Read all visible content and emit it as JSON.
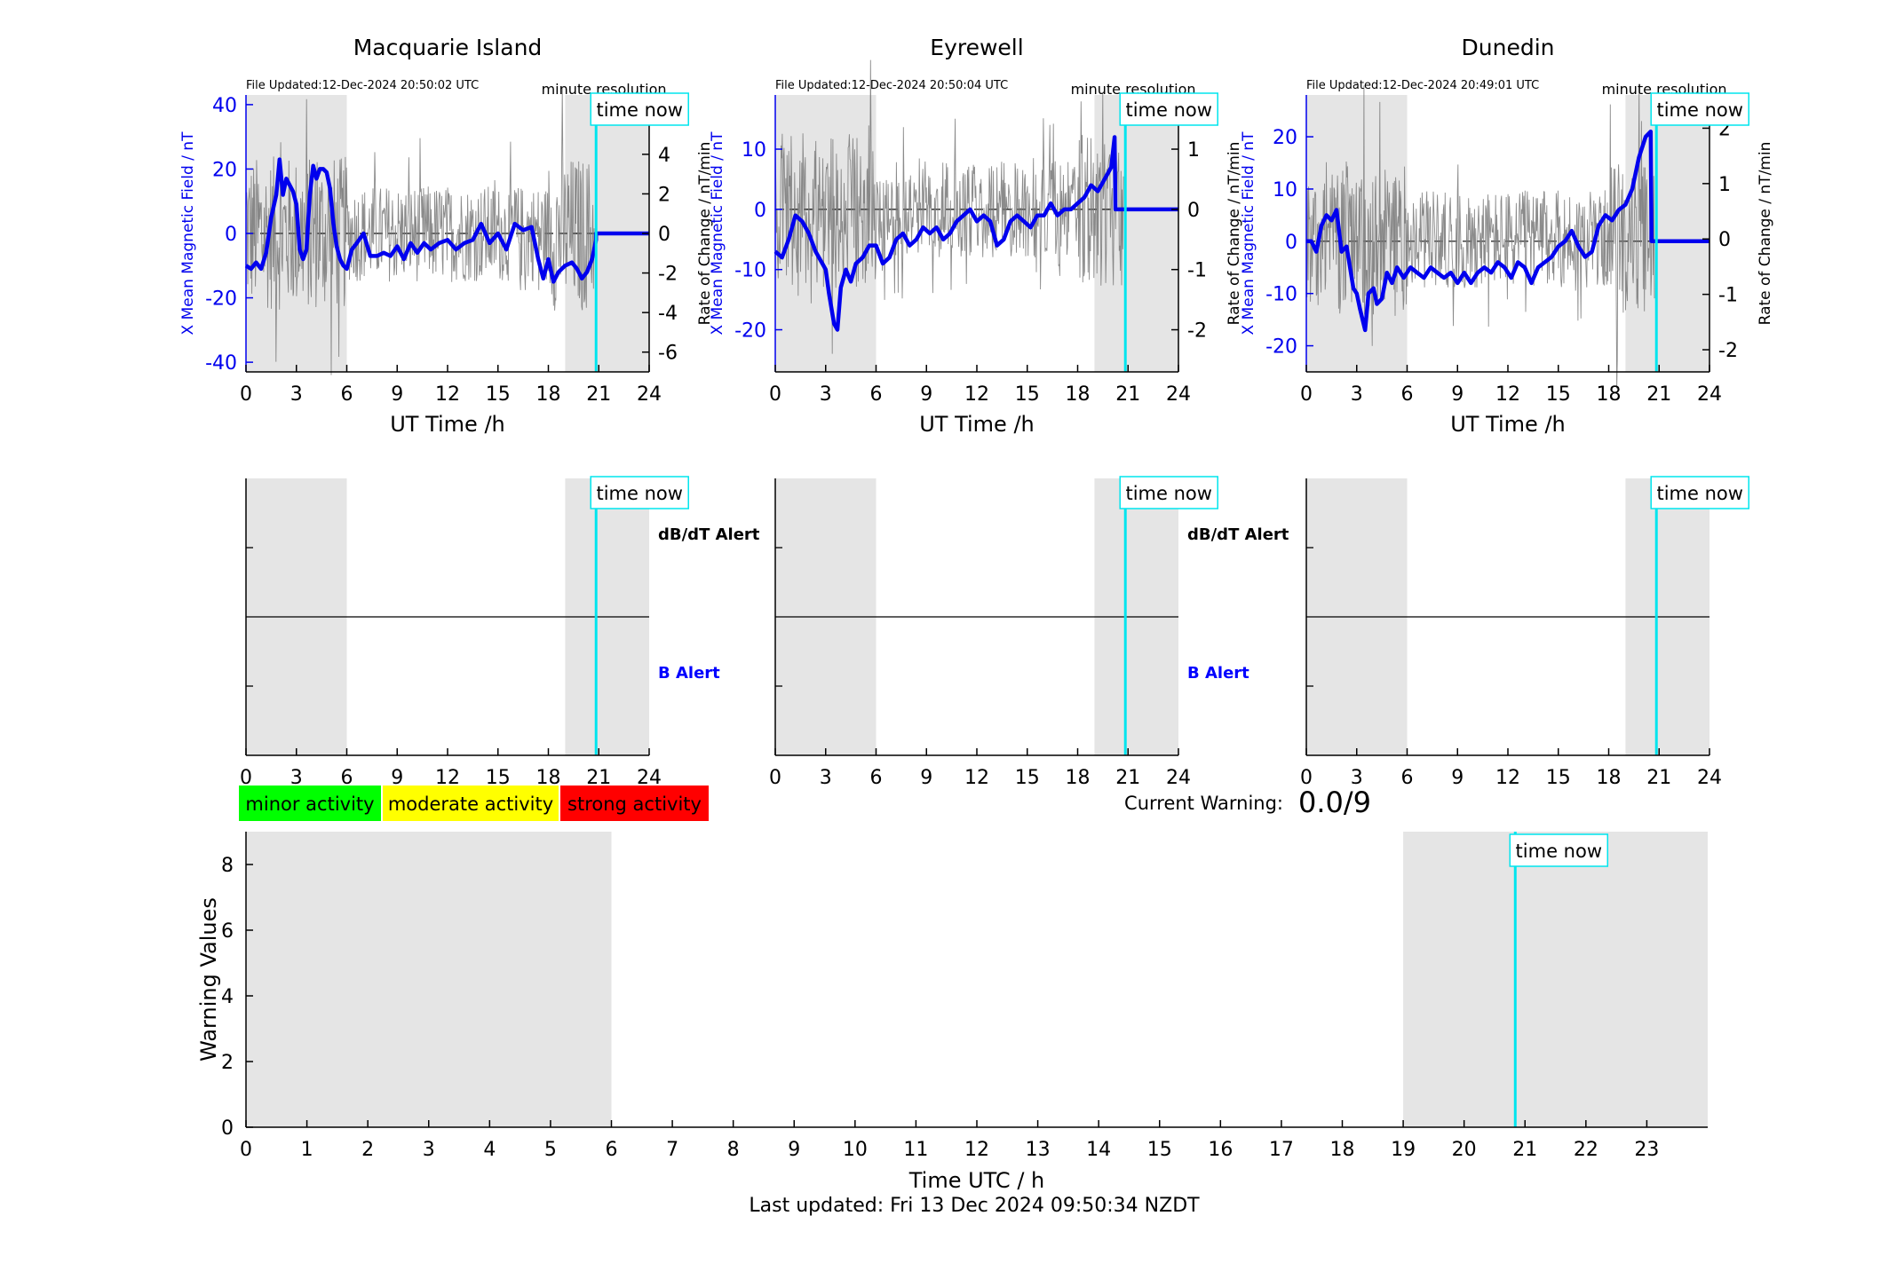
{
  "stations": [
    {
      "name": "Macquarie Island",
      "file_updated": "File Updated:12-Dec-2024 20:50:02 UTC",
      "resolution": "minute resolution",
      "time_now_label": "time now",
      "left_axis": {
        "label": "X Mean Magnetic Field / nT",
        "ticks": [
          40,
          20,
          0,
          -20,
          -40
        ],
        "ylim": [
          -43,
          43
        ]
      },
      "right_axis": {
        "label": "Rate of Change / nT/min",
        "ticks": [
          6,
          4,
          2,
          0,
          -2,
          -4,
          -6
        ],
        "ylim": [
          -7,
          7
        ]
      },
      "time_now_h": 20.84,
      "field_points": [
        [
          0,
          -10
        ],
        [
          0.3,
          -11
        ],
        [
          0.6,
          -9
        ],
        [
          0.9,
          -11
        ],
        [
          1.2,
          -6
        ],
        [
          1.5,
          5
        ],
        [
          1.8,
          12
        ],
        [
          2.0,
          23
        ],
        [
          2.2,
          12
        ],
        [
          2.4,
          17
        ],
        [
          2.6,
          15
        ],
        [
          2.8,
          13
        ],
        [
          3.0,
          9
        ],
        [
          3.2,
          -5
        ],
        [
          3.4,
          -8
        ],
        [
          3.6,
          -5
        ],
        [
          3.8,
          12
        ],
        [
          4.0,
          21
        ],
        [
          4.2,
          17
        ],
        [
          4.4,
          20
        ],
        [
          4.6,
          20
        ],
        [
          4.8,
          19
        ],
        [
          5.0,
          14
        ],
        [
          5.2,
          3
        ],
        [
          5.4,
          -4
        ],
        [
          5.6,
          -8
        ],
        [
          5.8,
          -10
        ],
        [
          6.0,
          -11
        ],
        [
          6.3,
          -5
        ],
        [
          6.6,
          -3
        ],
        [
          7.0,
          0
        ],
        [
          7.4,
          -7
        ],
        [
          7.8,
          -7
        ],
        [
          8.2,
          -6
        ],
        [
          8.6,
          -7
        ],
        [
          9.0,
          -4
        ],
        [
          9.4,
          -8
        ],
        [
          9.8,
          -3
        ],
        [
          10.2,
          -6
        ],
        [
          10.6,
          -3
        ],
        [
          11.0,
          -5
        ],
        [
          11.5,
          -3
        ],
        [
          12.0,
          -2
        ],
        [
          12.5,
          -5
        ],
        [
          13.0,
          -3
        ],
        [
          13.5,
          -2
        ],
        [
          14.0,
          3
        ],
        [
          14.5,
          -3
        ],
        [
          15.0,
          0
        ],
        [
          15.5,
          -5
        ],
        [
          16.0,
          3
        ],
        [
          16.5,
          1
        ],
        [
          17.0,
          2
        ],
        [
          17.4,
          -8
        ],
        [
          17.7,
          -14
        ],
        [
          18.0,
          -8
        ],
        [
          18.3,
          -15
        ],
        [
          18.6,
          -12
        ],
        [
          19.0,
          -10
        ],
        [
          19.4,
          -9
        ],
        [
          19.7,
          -11
        ],
        [
          20.0,
          -14
        ],
        [
          20.3,
          -12
        ],
        [
          20.6,
          -8
        ],
        [
          20.84,
          -2
        ],
        [
          20.84,
          0
        ],
        [
          24,
          0
        ]
      ],
      "alert_labels": {
        "dbdt": "dB/dT Alert",
        "b": "B Alert"
      }
    },
    {
      "name": "Eyrewell",
      "file_updated": "File Updated:12-Dec-2024 20:50:04 UTC",
      "resolution": "minute resolution",
      "time_now_label": "time now",
      "left_axis": {
        "label": "X Mean Magnetic Field / nT",
        "ticks": [
          10,
          0,
          -10,
          -20
        ],
        "ylim": [
          -27,
          19
        ]
      },
      "right_axis": {
        "label": "Rate of Change / nT/min",
        "ticks": [
          1,
          0,
          -1,
          -2
        ],
        "ylim": [
          -2.7,
          1.9
        ]
      },
      "time_now_h": 20.84,
      "field_points": [
        [
          0,
          -7
        ],
        [
          0.4,
          -8
        ],
        [
          0.8,
          -5
        ],
        [
          1.2,
          -1
        ],
        [
          1.6,
          -2
        ],
        [
          2.0,
          -4
        ],
        [
          2.4,
          -7
        ],
        [
          2.8,
          -9
        ],
        [
          3.0,
          -10
        ],
        [
          3.2,
          -14
        ],
        [
          3.5,
          -19
        ],
        [
          3.7,
          -20
        ],
        [
          3.9,
          -13
        ],
        [
          4.2,
          -10
        ],
        [
          4.5,
          -12
        ],
        [
          4.8,
          -9
        ],
        [
          5.2,
          -8
        ],
        [
          5.6,
          -6
        ],
        [
          6.0,
          -6
        ],
        [
          6.4,
          -9
        ],
        [
          6.8,
          -8
        ],
        [
          7.2,
          -5
        ],
        [
          7.6,
          -4
        ],
        [
          8.0,
          -6
        ],
        [
          8.4,
          -5
        ],
        [
          8.8,
          -3
        ],
        [
          9.2,
          -4
        ],
        [
          9.6,
          -3
        ],
        [
          10.0,
          -5
        ],
        [
          10.4,
          -4
        ],
        [
          10.8,
          -2
        ],
        [
          11.2,
          -1
        ],
        [
          11.6,
          0
        ],
        [
          12.0,
          -2
        ],
        [
          12.4,
          -1
        ],
        [
          12.8,
          -2
        ],
        [
          13.2,
          -6
        ],
        [
          13.6,
          -5
        ],
        [
          14.0,
          -2
        ],
        [
          14.4,
          -1
        ],
        [
          14.8,
          -2
        ],
        [
          15.2,
          -3
        ],
        [
          15.6,
          -1
        ],
        [
          16.0,
          -1
        ],
        [
          16.4,
          1
        ],
        [
          16.8,
          -1
        ],
        [
          17.2,
          0
        ],
        [
          17.6,
          0
        ],
        [
          18.0,
          1
        ],
        [
          18.4,
          2
        ],
        [
          18.8,
          4
        ],
        [
          19.2,
          3
        ],
        [
          19.6,
          5
        ],
        [
          20.0,
          7
        ],
        [
          20.2,
          12
        ],
        [
          20.25,
          0
        ],
        [
          24,
          0
        ]
      ],
      "alert_labels": {
        "dbdt": "dB/dT Alert",
        "b": "B Alert"
      }
    },
    {
      "name": "Dunedin",
      "file_updated": "File Updated:12-Dec-2024 20:49:01 UTC",
      "resolution": "minute resolution",
      "time_now_label": "time now",
      "left_axis": {
        "label": "X Mean Magnetic Field / nT",
        "ticks": [
          20,
          10,
          0,
          -10,
          -20
        ],
        "ylim": [
          -25,
          28
        ]
      },
      "right_axis": {
        "label": "Rate of Change / nT/min",
        "ticks": [
          2,
          1,
          0,
          -1,
          -2
        ],
        "ylim": [
          -2.4,
          2.6
        ]
      },
      "time_now_h": 20.84,
      "field_points": [
        [
          0,
          0
        ],
        [
          0.3,
          0
        ],
        [
          0.6,
          -2
        ],
        [
          0.9,
          3
        ],
        [
          1.2,
          5
        ],
        [
          1.5,
          4
        ],
        [
          1.8,
          6
        ],
        [
          2.1,
          -2
        ],
        [
          2.4,
          -1
        ],
        [
          2.6,
          -5
        ],
        [
          2.8,
          -9
        ],
        [
          3.0,
          -10
        ],
        [
          3.2,
          -13
        ],
        [
          3.5,
          -17
        ],
        [
          3.7,
          -10
        ],
        [
          4.0,
          -9
        ],
        [
          4.2,
          -12
        ],
        [
          4.5,
          -11
        ],
        [
          4.8,
          -6
        ],
        [
          5.1,
          -8
        ],
        [
          5.4,
          -5
        ],
        [
          5.8,
          -7
        ],
        [
          6.2,
          -5
        ],
        [
          6.6,
          -6
        ],
        [
          7.0,
          -7
        ],
        [
          7.4,
          -5
        ],
        [
          7.8,
          -6
        ],
        [
          8.2,
          -7
        ],
        [
          8.6,
          -6
        ],
        [
          9.0,
          -8
        ],
        [
          9.4,
          -6
        ],
        [
          9.8,
          -8
        ],
        [
          10.2,
          -6
        ],
        [
          10.6,
          -5
        ],
        [
          11.0,
          -6
        ],
        [
          11.4,
          -4
        ],
        [
          11.8,
          -5
        ],
        [
          12.2,
          -7
        ],
        [
          12.6,
          -4
        ],
        [
          13.0,
          -5
        ],
        [
          13.4,
          -8
        ],
        [
          13.8,
          -5
        ],
        [
          14.2,
          -4
        ],
        [
          14.6,
          -3
        ],
        [
          15.0,
          -1
        ],
        [
          15.4,
          0
        ],
        [
          15.8,
          2
        ],
        [
          16.2,
          -1
        ],
        [
          16.6,
          -3
        ],
        [
          17.0,
          -2
        ],
        [
          17.4,
          3
        ],
        [
          17.8,
          5
        ],
        [
          18.2,
          4
        ],
        [
          18.6,
          6
        ],
        [
          19.0,
          7
        ],
        [
          19.4,
          10
        ],
        [
          19.8,
          16
        ],
        [
          20.2,
          20
        ],
        [
          20.5,
          21
        ],
        [
          20.55,
          0
        ],
        [
          24,
          0
        ]
      ],
      "alert_labels": {
        "dbdt": "",
        "b": ""
      }
    }
  ],
  "time_axis": {
    "label": "UT Time /h",
    "ticks": [
      0,
      3,
      6,
      9,
      12,
      15,
      18,
      21,
      24
    ]
  },
  "night_shading": [
    [
      0,
      6
    ],
    [
      19,
      24
    ]
  ],
  "legend": [
    {
      "label": "minor activity",
      "color": "#00ff00"
    },
    {
      "label": "moderate activity",
      "color": "#ffff00"
    },
    {
      "label": "strong activity",
      "color": "#ff0000"
    }
  ],
  "current_warning": {
    "label": "Current Warning:",
    "value": "0.0/9"
  },
  "chart_data": {
    "type": "line",
    "title": "",
    "xlabel": "Time UTC / h",
    "ylabel": "Warning Values",
    "xlim": [
      0,
      24
    ],
    "ylim": [
      0,
      9
    ],
    "x_ticks": [
      0,
      1,
      2,
      3,
      4,
      5,
      6,
      7,
      8,
      9,
      10,
      11,
      12,
      13,
      14,
      15,
      16,
      17,
      18,
      19,
      20,
      21,
      22,
      23
    ],
    "y_ticks": [
      0,
      2,
      4,
      6,
      8
    ],
    "time_now_h": 20.84,
    "time_now_label": "time now",
    "series": []
  },
  "footer": "Last updated: Fri 13 Dec 2024 09:50:34 NZDT",
  "colors": {
    "field": "#0000ee",
    "time_now": "#00e5ee",
    "shade": "#e5e5e5",
    "alert_blue": "#0000ff"
  }
}
